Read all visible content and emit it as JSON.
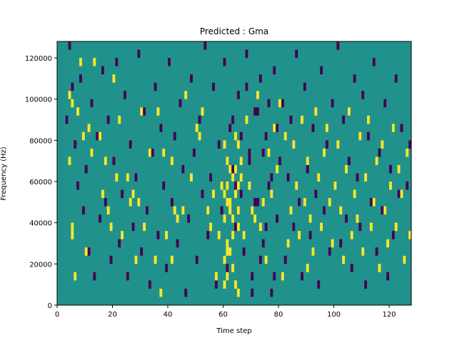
{
  "chart_data": {
    "type": "heatmap",
    "title": "Predicted : Gma",
    "xlabel": "Time step",
    "ylabel": "Frequency (Hz)",
    "xlim": [
      0,
      128
    ],
    "ylim": [
      0,
      128000
    ],
    "x_ticks": [
      0,
      20,
      40,
      60,
      80,
      100,
      120
    ],
    "y_ticks": [
      0,
      20000,
      40000,
      60000,
      80000,
      100000,
      120000
    ],
    "grid": false,
    "legend": "none",
    "colors": {
      "background": "#21918c",
      "low": "#440154",
      "high": "#fde725"
    },
    "cell_size": {
      "time_steps": 1,
      "frequency_hz": 4000
    },
    "high_cells": [
      [
        4,
        17
      ],
      [
        4,
        25
      ],
      [
        5,
        9
      ],
      [
        5,
        24
      ],
      [
        5,
        8
      ],
      [
        6,
        3
      ],
      [
        7,
        23
      ],
      [
        8,
        29
      ],
      [
        9,
        20
      ],
      [
        10,
        6
      ],
      [
        11,
        21
      ],
      [
        12,
        18
      ],
      [
        13,
        29
      ],
      [
        15,
        20
      ],
      [
        16,
        13
      ],
      [
        17,
        17
      ],
      [
        18,
        11
      ],
      [
        19,
        9
      ],
      [
        20,
        27
      ],
      [
        21,
        15
      ],
      [
        22,
        22
      ],
      [
        23,
        8
      ],
      [
        25,
        15
      ],
      [
        26,
        12
      ],
      [
        27,
        13
      ],
      [
        28,
        5
      ],
      [
        29,
        12
      ],
      [
        30,
        23
      ],
      [
        31,
        9
      ],
      [
        33,
        18
      ],
      [
        35,
        5
      ],
      [
        36,
        23
      ],
      [
        37,
        1
      ],
      [
        38,
        18
      ],
      [
        39,
        8
      ],
      [
        41,
        17
      ],
      [
        41,
        5
      ],
      [
        42,
        11
      ],
      [
        43,
        10
      ],
      [
        45,
        11
      ],
      [
        46,
        25
      ],
      [
        48,
        15
      ],
      [
        50,
        21
      ],
      [
        51,
        20
      ],
      [
        52,
        23
      ],
      [
        54,
        11
      ],
      [
        55,
        9
      ],
      [
        56,
        13
      ],
      [
        57,
        3
      ],
      [
        58,
        8
      ],
      [
        59,
        14
      ],
      [
        60,
        10
      ],
      [
        60,
        5
      ],
      [
        61,
        3
      ],
      [
        61,
        7
      ],
      [
        61,
        12
      ],
      [
        62,
        16
      ],
      [
        63,
        10
      ],
      [
        64,
        20
      ],
      [
        65,
        1
      ],
      [
        65,
        19
      ],
      [
        66,
        17
      ],
      [
        66,
        15
      ],
      [
        67,
        8
      ],
      [
        68,
        22
      ],
      [
        69,
        14
      ],
      [
        70,
        11
      ],
      [
        71,
        10
      ],
      [
        72,
        25
      ],
      [
        73,
        9
      ],
      [
        74,
        12
      ],
      [
        75,
        5
      ],
      [
        76,
        18
      ],
      [
        77,
        13
      ],
      [
        78,
        21
      ],
      [
        79,
        16
      ],
      [
        80,
        24
      ],
      [
        81,
        3
      ],
      [
        82,
        20
      ],
      [
        83,
        7
      ],
      [
        84,
        11
      ],
      [
        85,
        19
      ],
      [
        86,
        14
      ],
      [
        87,
        8
      ],
      [
        88,
        22
      ],
      [
        89,
        12
      ],
      [
        90,
        17
      ],
      [
        90,
        4
      ],
      [
        91,
        10
      ],
      [
        92,
        6
      ],
      [
        93,
        23
      ],
      [
        94,
        15
      ],
      [
        95,
        9
      ],
      [
        96,
        18
      ],
      [
        97,
        21
      ],
      [
        98,
        12
      ],
      [
        99,
        7
      ],
      [
        100,
        14
      ],
      [
        101,
        19
      ],
      [
        102,
        11
      ],
      [
        103,
        5
      ],
      [
        104,
        16
      ],
      [
        105,
        23
      ],
      [
        106,
        8
      ],
      [
        107,
        13
      ],
      [
        108,
        10
      ],
      [
        109,
        20
      ],
      [
        110,
        6
      ],
      [
        111,
        15
      ],
      [
        112,
        22
      ],
      [
        113,
        9
      ],
      [
        114,
        12
      ],
      [
        115,
        17
      ],
      [
        116,
        4
      ],
      [
        117,
        19
      ],
      [
        118,
        11
      ],
      [
        119,
        7
      ],
      [
        120,
        14
      ],
      [
        121,
        21
      ],
      [
        122,
        9
      ],
      [
        123,
        16
      ],
      [
        124,
        13
      ],
      [
        125,
        5
      ],
      [
        126,
        18
      ],
      [
        127,
        8
      ],
      [
        60,
        19
      ],
      [
        61,
        14
      ],
      [
        62,
        6
      ],
      [
        63,
        15
      ],
      [
        64,
        2
      ],
      [
        65,
        9
      ],
      [
        60,
        13
      ],
      [
        61,
        6
      ],
      [
        62,
        12
      ],
      [
        63,
        4
      ],
      [
        64,
        13
      ],
      [
        65,
        11
      ],
      [
        60,
        2
      ],
      [
        61,
        17
      ],
      [
        62,
        11
      ],
      [
        63,
        8
      ],
      [
        64,
        16
      ],
      [
        65,
        14
      ]
    ],
    "low_cells": [
      [
        3,
        22
      ],
      [
        4,
        31
      ],
      [
        5,
        26
      ],
      [
        6,
        19
      ],
      [
        7,
        14
      ],
      [
        8,
        27
      ],
      [
        9,
        11
      ],
      [
        10,
        16
      ],
      [
        11,
        6
      ],
      [
        12,
        24
      ],
      [
        13,
        3
      ],
      [
        14,
        20
      ],
      [
        15,
        10
      ],
      [
        16,
        28
      ],
      [
        17,
        12
      ],
      [
        18,
        22
      ],
      [
        19,
        5
      ],
      [
        20,
        17
      ],
      [
        21,
        29
      ],
      [
        22,
        7
      ],
      [
        23,
        13
      ],
      [
        24,
        25
      ],
      [
        25,
        3
      ],
      [
        26,
        19
      ],
      [
        27,
        9
      ],
      [
        28,
        15
      ],
      [
        29,
        30
      ],
      [
        30,
        6
      ],
      [
        31,
        23
      ],
      [
        32,
        11
      ],
      [
        33,
        2
      ],
      [
        34,
        18
      ],
      [
        35,
        26
      ],
      [
        36,
        8
      ],
      [
        37,
        21
      ],
      [
        38,
        14
      ],
      [
        39,
        4
      ],
      [
        40,
        29
      ],
      [
        41,
        12
      ],
      [
        42,
        20
      ],
      [
        43,
        7
      ],
      [
        44,
        24
      ],
      [
        45,
        16
      ],
      [
        46,
        1
      ],
      [
        47,
        10
      ],
      [
        48,
        27
      ],
      [
        49,
        18
      ],
      [
        50,
        5
      ],
      [
        51,
        22
      ],
      [
        52,
        13
      ],
      [
        53,
        31
      ],
      [
        54,
        8
      ],
      [
        55,
        15
      ],
      [
        56,
        26
      ],
      [
        57,
        2
      ],
      [
        58,
        19
      ],
      [
        59,
        11
      ],
      [
        60,
        29
      ],
      [
        61,
        4
      ],
      [
        62,
        21
      ],
      [
        63,
        16
      ],
      [
        64,
        9
      ],
      [
        65,
        25
      ],
      [
        66,
        13
      ],
      [
        67,
        6
      ],
      [
        68,
        30
      ],
      [
        69,
        18
      ],
      [
        70,
        3
      ],
      [
        71,
        23
      ],
      [
        72,
        12
      ],
      [
        73,
        27
      ],
      [
        74,
        7
      ],
      [
        75,
        20
      ],
      [
        76,
        14
      ],
      [
        77,
        1
      ],
      [
        78,
        28
      ],
      [
        79,
        10
      ],
      [
        80,
        17
      ],
      [
        81,
        24
      ],
      [
        82,
        5
      ],
      [
        83,
        15
      ],
      [
        84,
        22
      ],
      [
        85,
        9
      ],
      [
        86,
        30
      ],
      [
        87,
        12
      ],
      [
        88,
        3
      ],
      [
        89,
        26
      ],
      [
        90,
        16
      ],
      [
        91,
        8
      ],
      [
        92,
        21
      ],
      [
        93,
        13
      ],
      [
        94,
        2
      ],
      [
        95,
        28
      ],
      [
        96,
        11
      ],
      [
        97,
        19
      ],
      [
        98,
        6
      ],
      [
        99,
        24
      ],
      [
        100,
        14
      ],
      [
        101,
        31
      ],
      [
        102,
        7
      ],
      [
        103,
        22
      ],
      [
        104,
        10
      ],
      [
        105,
        17
      ],
      [
        106,
        4
      ],
      [
        107,
        27
      ],
      [
        108,
        15
      ],
      [
        109,
        9
      ],
      [
        110,
        25
      ],
      [
        111,
        2
      ],
      [
        112,
        20
      ],
      [
        113,
        12
      ],
      [
        114,
        29
      ],
      [
        115,
        6
      ],
      [
        116,
        18
      ],
      [
        117,
        11
      ],
      [
        118,
        24
      ],
      [
        119,
        3
      ],
      [
        120,
        16
      ],
      [
        121,
        8
      ],
      [
        122,
        27
      ],
      [
        123,
        13
      ],
      [
        124,
        21
      ],
      [
        125,
        5
      ],
      [
        126,
        14
      ],
      [
        127,
        19
      ],
      [
        62,
        16
      ],
      [
        63,
        22
      ],
      [
        64,
        14
      ],
      [
        65,
        11
      ],
      [
        66,
        20
      ],
      [
        67,
        8
      ],
      [
        68,
        26
      ],
      [
        69,
        17
      ],
      [
        70,
        1
      ],
      [
        71,
        12
      ],
      [
        72,
        23
      ],
      [
        73,
        5
      ],
      [
        74,
        18
      ],
      [
        75,
        9
      ],
      [
        76,
        24
      ],
      [
        77,
        15
      ],
      [
        78,
        3
      ],
      [
        79,
        21
      ]
    ]
  }
}
